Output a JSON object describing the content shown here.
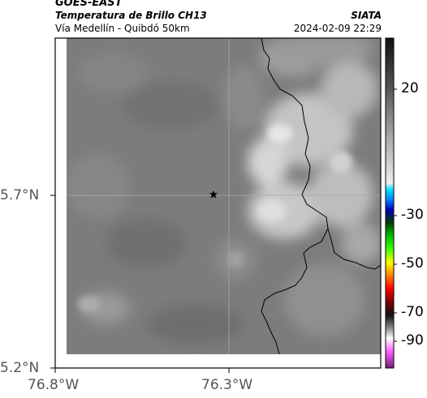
{
  "header": {
    "satellite": "GOES-EAST",
    "product": "Temperatura de Brillo CH13",
    "region": "Vía Medellín - Quibdó 50km",
    "agency": "SIATA",
    "datetime": "2024-02-09 22:29"
  },
  "map": {
    "lat_ticks": [
      "5.7°N",
      "5.2°N"
    ],
    "lon_ticks": [
      "76.8°W",
      "76.3°W"
    ],
    "marker": "star-marker"
  },
  "colorbar": {
    "ticks": [
      "20",
      "-30",
      "-50",
      "-70",
      "-90"
    ]
  },
  "colors": {
    "background": "#ffffff",
    "map_gray": "#808080",
    "cloud_light": "#d0d0d0",
    "border_line": "#000000"
  }
}
